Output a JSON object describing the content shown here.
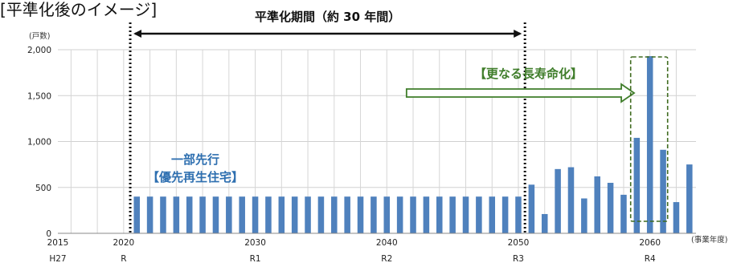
{
  "chart_data": {
    "type": "bar",
    "title": "[平準化後のイメージ]",
    "ylabel": "(戸数)",
    "xlabel": "(事業年度)",
    "ylim": [
      0,
      2000
    ],
    "yticks": [
      "0",
      "500",
      "1,000",
      "1,500",
      "2,000"
    ],
    "ytick_values": [
      0,
      500,
      1000,
      1500,
      2000
    ],
    "xlim": [
      2015,
      2063.5
    ],
    "xticks": [
      {
        "year": 2015,
        "label": "2015",
        "era": "H27"
      },
      {
        "year": 2020,
        "label": "2020",
        "era": "R"
      },
      {
        "year": 2030,
        "label": "2030",
        "era": "R1"
      },
      {
        "year": 2040,
        "label": "2040",
        "era": "R2"
      },
      {
        "year": 2050,
        "label": "2050",
        "era": "R3"
      },
      {
        "year": 2060,
        "label": "2060",
        "era": "R4"
      }
    ],
    "grid": true,
    "bar_color": "#4f81bd",
    "x": [
      2021,
      2022,
      2023,
      2024,
      2025,
      2026,
      2027,
      2028,
      2029,
      2030,
      2031,
      2032,
      2033,
      2034,
      2035,
      2036,
      2037,
      2038,
      2039,
      2040,
      2041,
      2042,
      2043,
      2044,
      2045,
      2046,
      2047,
      2048,
      2049,
      2050,
      2051,
      2052,
      2053,
      2054,
      2055,
      2056,
      2057,
      2058,
      2059,
      2060,
      2061,
      2062,
      2063
    ],
    "values": [
      400,
      400,
      400,
      400,
      400,
      400,
      400,
      400,
      400,
      400,
      400,
      400,
      400,
      400,
      400,
      400,
      400,
      400,
      400,
      400,
      400,
      400,
      400,
      400,
      400,
      400,
      400,
      400,
      400,
      400,
      530,
      210,
      700,
      720,
      380,
      620,
      550,
      420,
      1040,
      1930,
      910,
      340,
      750
    ],
    "annotations": {
      "period_label": "平準化期間（約 30 年間）",
      "period_start": 2020.5,
      "period_end": 2050.5,
      "early_label_1": "一部先行",
      "early_label_2": "【優先再生住宅】",
      "extend_label": "【更なる長寿命化】",
      "extend_arrow_from": 2041.5,
      "extend_arrow_to": 2058.8,
      "highlight_year": 2060
    },
    "colors": {
      "period_arrow": "#111111",
      "blue_text": "#2e6fb0",
      "green": "#3f7d2a",
      "highlight_box": "#3f6b1f"
    }
  }
}
